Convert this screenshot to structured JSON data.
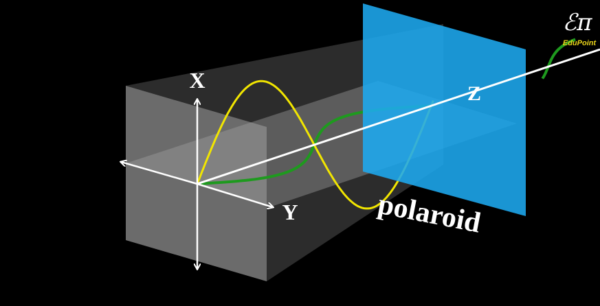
{
  "labels": {
    "x_axis": "X",
    "y_axis": "Y",
    "z_axis": "Z",
    "polaroid": "polaroid"
  },
  "logo": {
    "symbol": "ℰπ",
    "name": "EduPoint"
  }
}
